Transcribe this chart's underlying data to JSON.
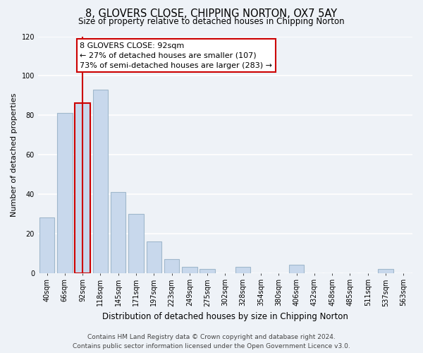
{
  "title": "8, GLOVERS CLOSE, CHIPPING NORTON, OX7 5AY",
  "subtitle": "Size of property relative to detached houses in Chipping Norton",
  "xlabel": "Distribution of detached houses by size in Chipping Norton",
  "ylabel": "Number of detached properties",
  "bar_labels": [
    "40sqm",
    "66sqm",
    "92sqm",
    "118sqm",
    "145sqm",
    "171sqm",
    "197sqm",
    "223sqm",
    "249sqm",
    "275sqm",
    "302sqm",
    "328sqm",
    "354sqm",
    "380sqm",
    "406sqm",
    "432sqm",
    "458sqm",
    "485sqm",
    "511sqm",
    "537sqm",
    "563sqm"
  ],
  "bar_values": [
    28,
    81,
    86,
    93,
    41,
    30,
    16,
    7,
    3,
    2,
    0,
    3,
    0,
    0,
    4,
    0,
    0,
    0,
    0,
    2,
    0
  ],
  "bar_color": "#c8d8ec",
  "bar_edge_color": "#a0b8cc",
  "highlight_bar_index": 2,
  "highlight_edge_color": "#cc0000",
  "vline_color": "#cc0000",
  "ylim": [
    0,
    120
  ],
  "yticks": [
    0,
    20,
    40,
    60,
    80,
    100,
    120
  ],
  "annotation_title": "8 GLOVERS CLOSE: 92sqm",
  "annotation_line1": "← 27% of detached houses are smaller (107)",
  "annotation_line2": "73% of semi-detached houses are larger (283) →",
  "annotation_box_color": "#ffffff",
  "annotation_box_edge_color": "#cc0000",
  "footer_line1": "Contains HM Land Registry data © Crown copyright and database right 2024.",
  "footer_line2": "Contains public sector information licensed under the Open Government Licence v3.0.",
  "background_color": "#eef2f7",
  "grid_color": "#ffffff",
  "title_fontsize": 10.5,
  "subtitle_fontsize": 8.5,
  "axis_label_fontsize": 8,
  "tick_fontsize": 7,
  "footer_fontsize": 6.5,
  "annotation_fontsize": 8
}
